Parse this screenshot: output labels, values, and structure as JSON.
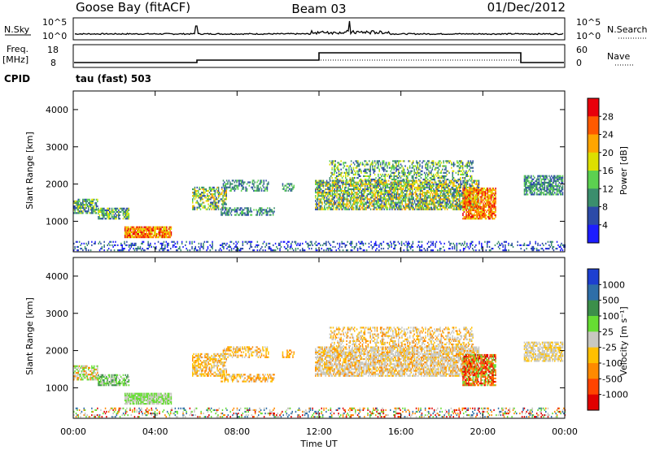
{
  "header": {
    "station": "Goose Bay (fitACF)",
    "beam": "Beam 03",
    "date": "01/Dec/2012"
  },
  "top_panels": {
    "nsky_label": "N.Sky",
    "nsky_ticks": [
      "10^5",
      "10^0"
    ],
    "nsearch_label": "N.Search",
    "nsearch_ticks": [
      "10^5",
      "10^0"
    ],
    "freq_label": "Freq.",
    "freq_unit": "[MHz]",
    "freq_ticks": [
      "18",
      "8"
    ],
    "nave_label": "Nave",
    "nave_ticks": [
      "60",
      "0"
    ],
    "cpid_label": "CPID",
    "cpid_value": "tau (fast) 503"
  },
  "chart_data": [
    {
      "type": "heatmap",
      "name": "power",
      "ylabel": "Slant Range [km]",
      "xlabel": "Time UT",
      "ylim": [
        180,
        4500
      ],
      "y_ticks": [
        "4000",
        "3000",
        "2000",
        "1000"
      ],
      "x_ticks": [
        "00:00",
        "04:00",
        "08:00",
        "12:00",
        "16:00",
        "20:00",
        "00:00"
      ],
      "colorbar_label": "Power [dB]",
      "colorbar_ticks": [
        "28",
        "24",
        "20",
        "16",
        "12",
        "8",
        "4"
      ],
      "colorbar_colors": [
        "#e8000b",
        "#ff5a00",
        "#ffa500",
        "#dde000",
        "#5cd150",
        "#3b8e6d",
        "#2c4aa8",
        "#1d1dff"
      ]
    },
    {
      "type": "heatmap",
      "name": "velocity",
      "ylabel": "Slant Range [km]",
      "xlabel": "Time UT",
      "ylim": [
        180,
        4500
      ],
      "y_ticks": [
        "4000",
        "3000",
        "2000",
        "1000"
      ],
      "x_ticks": [
        "00:00",
        "04:00",
        "08:00",
        "12:00",
        "16:00",
        "20:00",
        "00:00"
      ],
      "colorbar_label": "Velocity [m s⁻¹]",
      "colorbar_ticks": [
        "1000",
        "500",
        "100",
        "25",
        "-25",
        "-100",
        "-500",
        "-1000"
      ],
      "colorbar_colors": [
        "#1d3fd0",
        "#2e6ea8",
        "#3c8f4a",
        "#66dd33",
        "#c8c8c0",
        "#ffc000",
        "#ff8a00",
        "#ff4400",
        "#e00000"
      ]
    }
  ]
}
